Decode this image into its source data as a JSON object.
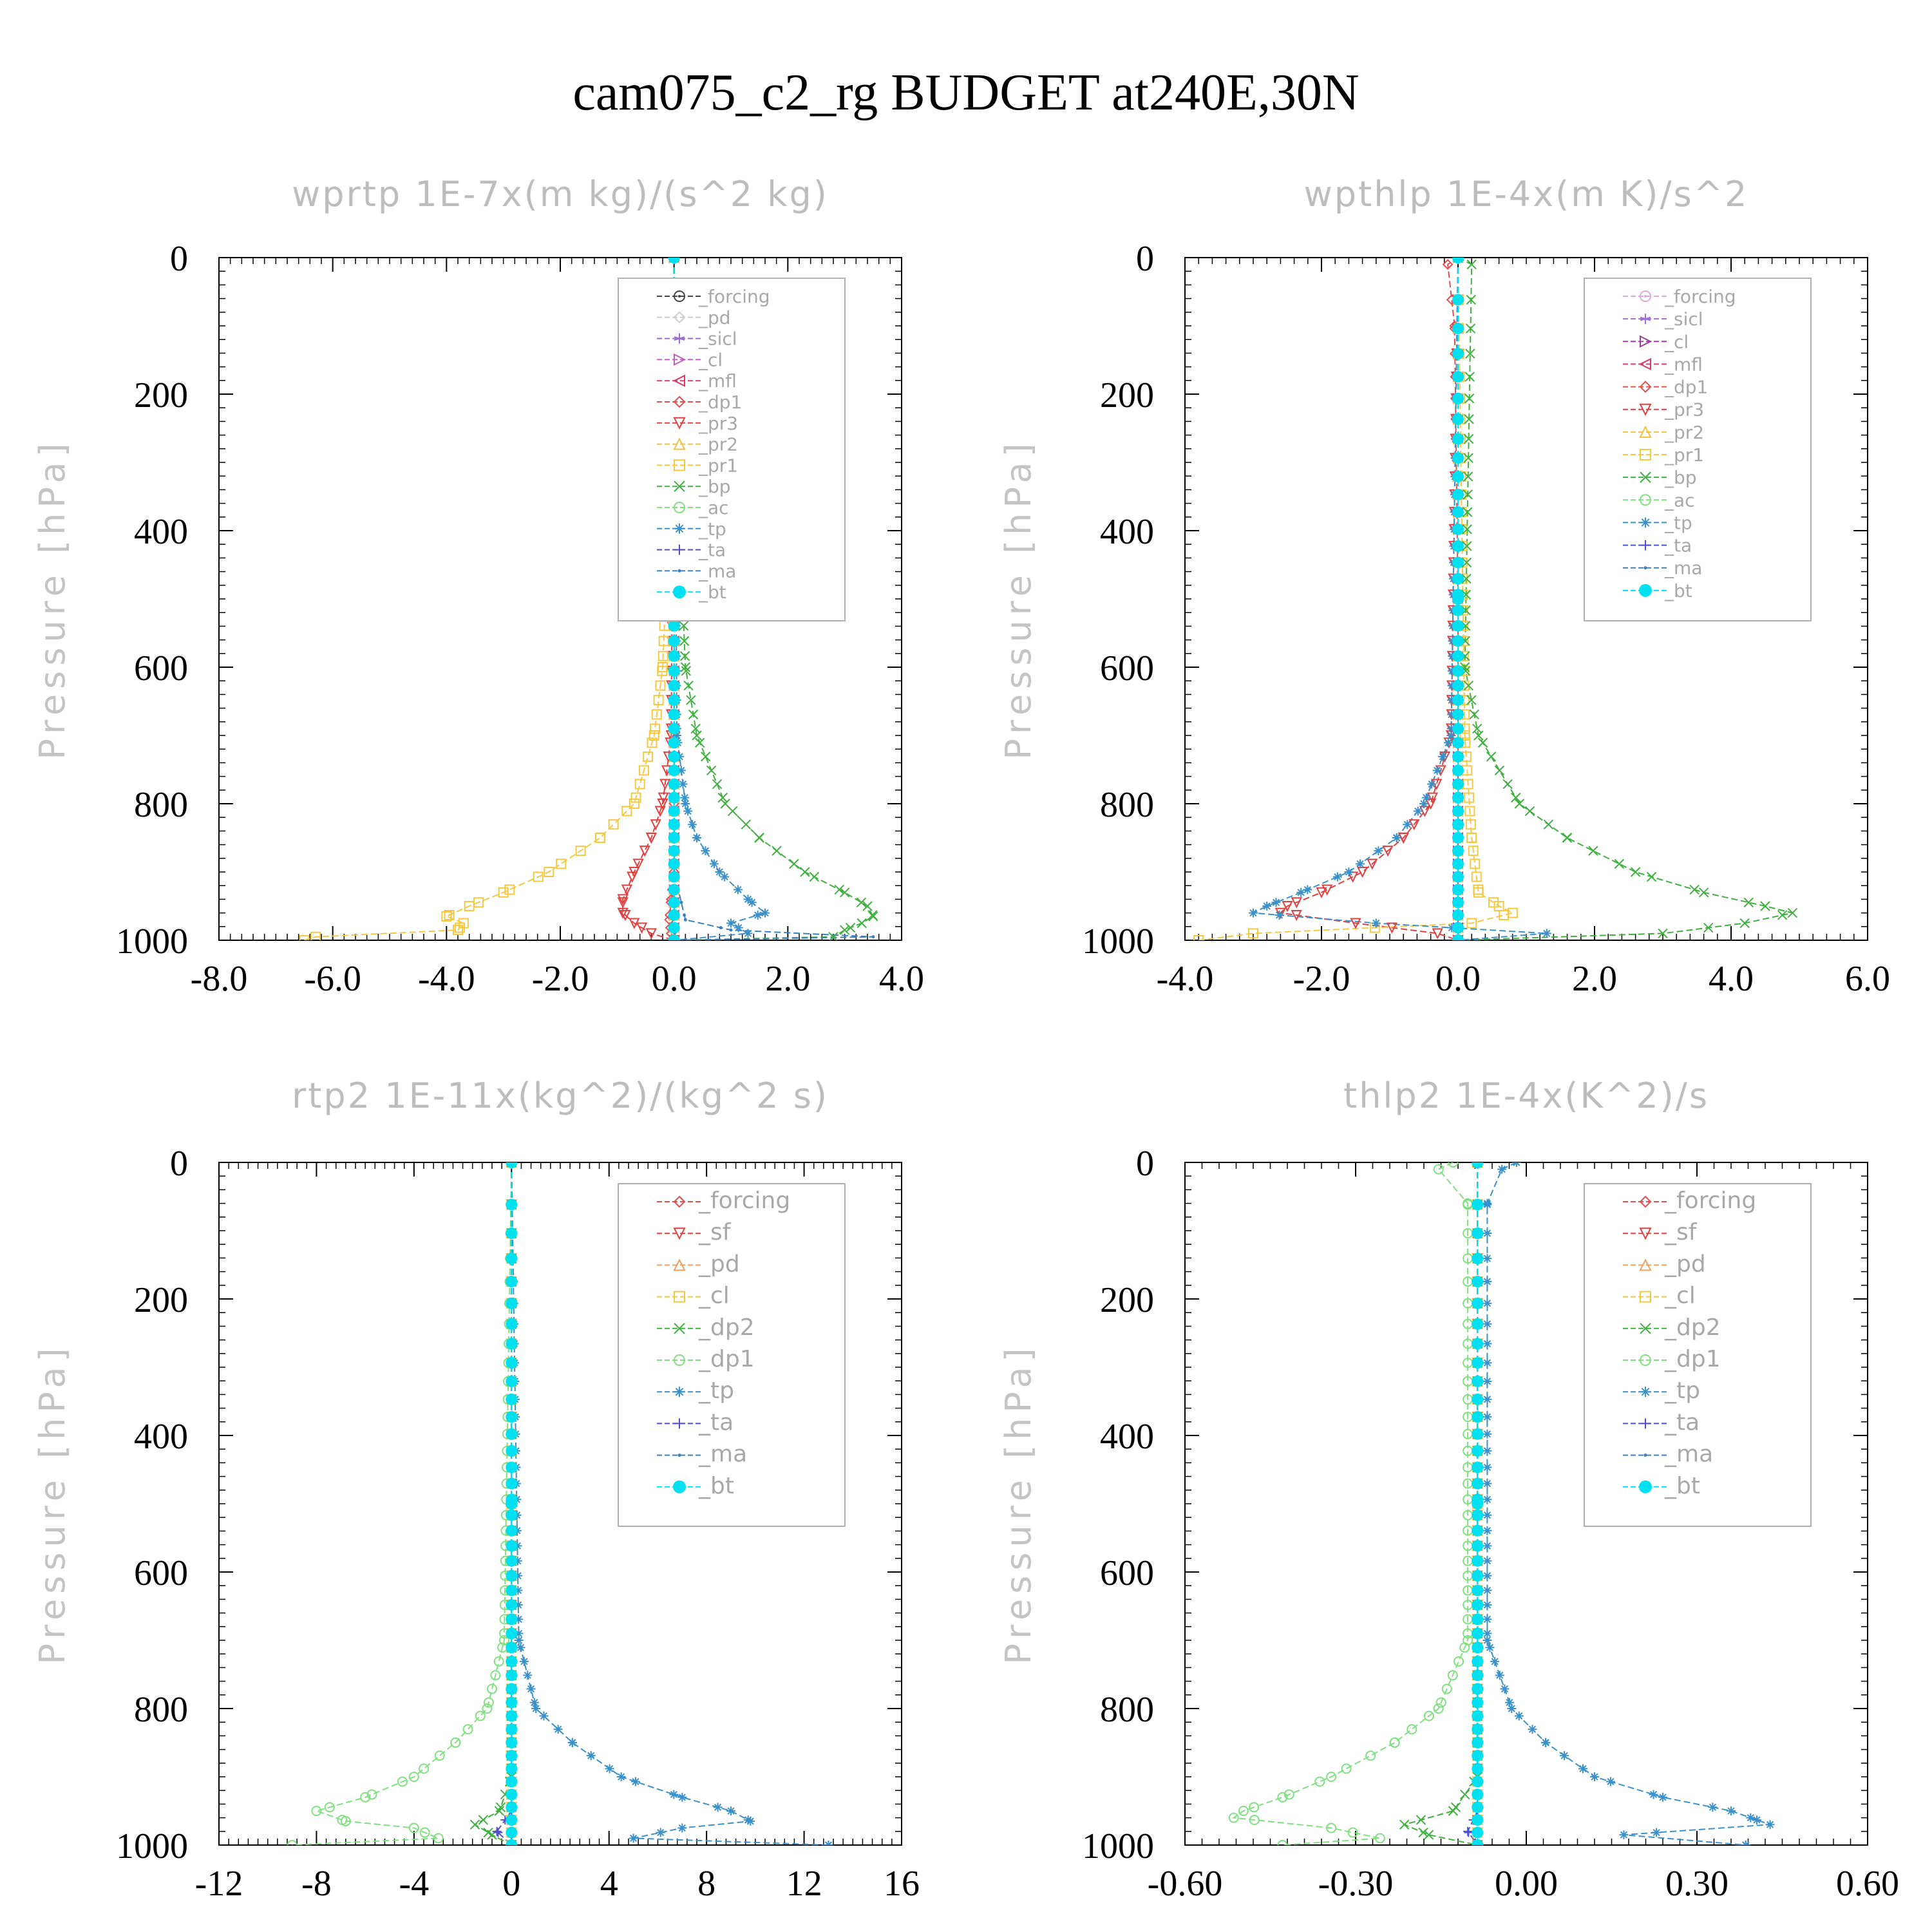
{
  "title": "cam075_c2_rg  BUDGET at240E,30N",
  "chart_data": [
    {
      "type": "line",
      "title": "wprtp   1E-7x(m kg)/(s^2 kg)",
      "ylabel": "Pressure [hPa]",
      "xlim": [
        -8,
        4
      ],
      "ylim": [
        1000,
        0
      ],
      "xticks": [
        "-8.0",
        "-6.0",
        "-4.0",
        "-2.0",
        "0.0",
        "2.0",
        "4.0"
      ],
      "yticks": [
        "0",
        "200",
        "400",
        "600",
        "800",
        "1000"
      ],
      "legend_position": "top-right",
      "grid": false,
      "series": [
        {
          "name": "_forcing",
          "color": "#444444",
          "marker": "circle-dot",
          "pressure": [
            0,
            500,
            1000
          ],
          "values": [
            0,
            0,
            0
          ]
        },
        {
          "name": "_pd",
          "color": "#cccccc",
          "marker": "diamond",
          "pressure": [
            0,
            500,
            1000
          ],
          "values": [
            0,
            0,
            0
          ]
        },
        {
          "name": "_sicl",
          "color": "#9a6fcf",
          "marker": "star",
          "pressure": [
            0,
            500,
            1000
          ],
          "values": [
            0,
            0,
            0
          ]
        },
        {
          "name": "_cl",
          "color": "#c060c0",
          "marker": "triangle-right",
          "pressure": [
            0,
            500,
            1000
          ],
          "values": [
            0,
            0,
            0
          ]
        },
        {
          "name": "_mfl",
          "color": "#e03a6a",
          "marker": "triangle-left",
          "pressure": [
            0,
            500,
            1000
          ],
          "values": [
            0,
            0,
            0
          ]
        },
        {
          "name": "_dp1",
          "color": "#e05050",
          "marker": "diamond",
          "pressure": [
            0,
            800,
            900,
            940,
            970,
            990,
            1000
          ],
          "values": [
            0,
            0,
            0,
            -0.05,
            -0.08,
            -0.05,
            0
          ]
        },
        {
          "name": "_pr3",
          "color": "#e04040",
          "marker": "triangle-down",
          "pressure": [
            0,
            700,
            800,
            850,
            900,
            940,
            960,
            975,
            990,
            1000
          ],
          "values": [
            0,
            -0.05,
            -0.2,
            -0.4,
            -0.7,
            -0.9,
            -0.9,
            -0.7,
            -0.4,
            0
          ]
        },
        {
          "name": "_pr2",
          "color": "#f0c040",
          "marker": "triangle",
          "pressure": [
            0,
            500,
            1000
          ],
          "values": [
            0,
            0,
            0
          ]
        },
        {
          "name": "_pr1",
          "color": "#f5c842",
          "marker": "square",
          "pressure": [
            0,
            400,
            600,
            700,
            800,
            850,
            900,
            930,
            950,
            965,
            975,
            985,
            995,
            1000
          ],
          "values": [
            0,
            -0.1,
            -0.2,
            -0.35,
            -0.7,
            -1.3,
            -2.2,
            -3.0,
            -3.6,
            -4.0,
            -3.7,
            -3.8,
            -6.3,
            -6.5
          ]
        },
        {
          "name": "_bp",
          "color": "#40b040",
          "marker": "x",
          "pressure": [
            0,
            400,
            600,
            700,
            800,
            850,
            900,
            930,
            950,
            965,
            975,
            985,
            995,
            1000
          ],
          "values": [
            0,
            0.1,
            0.2,
            0.4,
            0.9,
            1.5,
            2.3,
            3.0,
            3.4,
            3.5,
            3.3,
            3.0,
            2.8,
            0
          ]
        },
        {
          "name": "_ac",
          "color": "#80e080",
          "marker": "circle",
          "pressure": [
            0,
            500,
            1000
          ],
          "values": [
            0,
            0,
            0
          ]
        },
        {
          "name": "_tp",
          "color": "#3a90c8",
          "marker": "asterisk",
          "pressure": [
            0,
            700,
            800,
            850,
            900,
            940,
            960,
            975,
            990,
            1000
          ],
          "values": [
            0,
            0.05,
            0.2,
            0.4,
            0.8,
            1.3,
            1.6,
            1.0,
            1.3,
            0
          ]
        },
        {
          "name": "_ta",
          "color": "#5050d0",
          "marker": "plus",
          "pressure": [
            0,
            500,
            1000
          ],
          "values": [
            0,
            0,
            0
          ]
        },
        {
          "name": "_ma",
          "color": "#3a80c0",
          "marker": "dot",
          "pressure": [
            0,
            900,
            970,
            985,
            995,
            1000
          ],
          "values": [
            0,
            0,
            0.2,
            1.0,
            3.5,
            0
          ]
        },
        {
          "name": "_bt",
          "color": "#00e0f0",
          "marker": "filled-circle",
          "pressure": [
            0,
            500,
            1000
          ],
          "values": [
            0,
            0,
            0
          ]
        }
      ]
    },
    {
      "type": "line",
      "title": "wpthlp   1E-4x(m K)/s^2",
      "ylabel": "Pressure [hPa]",
      "xlim": [
        -4,
        6
      ],
      "ylim": [
        1000,
        0
      ],
      "xticks": [
        "-4.0",
        "-2.0",
        "0.0",
        "2.0",
        "4.0",
        "6.0"
      ],
      "yticks": [
        "0",
        "200",
        "400",
        "600",
        "800",
        "1000"
      ],
      "legend_position": "top-right",
      "grid": false,
      "series": [
        {
          "name": "_forcing",
          "color": "#dda8e0",
          "marker": "circle-dot",
          "pressure": [
            0,
            500,
            1000
          ],
          "values": [
            0,
            0,
            0
          ]
        },
        {
          "name": "_sicl",
          "color": "#a070d0",
          "marker": "star",
          "pressure": [
            0,
            500,
            1000
          ],
          "values": [
            0,
            0,
            0
          ]
        },
        {
          "name": "_cl",
          "color": "#9a40a0",
          "marker": "triangle-right",
          "pressure": [
            0,
            500,
            1000
          ],
          "values": [
            0,
            0,
            0
          ]
        },
        {
          "name": "_mfl",
          "color": "#e03a6a",
          "marker": "triangle-left",
          "pressure": [
            0,
            500,
            1000
          ],
          "values": [
            0,
            0,
            0
          ]
        },
        {
          "name": "_dp1",
          "color": "#e05050",
          "marker": "diamond",
          "pressure": [
            0,
            10,
            100,
            500,
            1000
          ],
          "values": [
            0,
            -0.15,
            -0.05,
            0,
            0
          ]
        },
        {
          "name": "_pr3",
          "color": "#e04040",
          "marker": "triangle-down",
          "pressure": [
            0,
            700,
            800,
            850,
            900,
            930,
            950,
            960,
            975,
            990,
            1000
          ],
          "values": [
            0,
            -0.1,
            -0.4,
            -0.8,
            -1.4,
            -2.0,
            -2.5,
            -2.6,
            -1.5,
            -0.3,
            0
          ]
        },
        {
          "name": "_pr2",
          "color": "#f0c040",
          "marker": "triangle",
          "pressure": [
            0,
            500,
            1000
          ],
          "values": [
            0,
            0,
            0
          ]
        },
        {
          "name": "_pr1",
          "color": "#f5c842",
          "marker": "square",
          "pressure": [
            0,
            700,
            850,
            930,
            950,
            960,
            975,
            990,
            1000
          ],
          "values": [
            0,
            0.1,
            0.2,
            0.3,
            0.6,
            0.8,
            0.2,
            -3.0,
            -3.8
          ]
        },
        {
          "name": "_bp",
          "color": "#40b040",
          "marker": "x",
          "pressure": [
            0,
            10,
            600,
            700,
            800,
            850,
            900,
            930,
            950,
            960,
            975,
            990,
            1000
          ],
          "values": [
            0,
            0.2,
            0.1,
            0.3,
            0.9,
            1.6,
            2.6,
            3.6,
            4.5,
            4.9,
            4.2,
            3.0,
            0
          ]
        },
        {
          "name": "_ac",
          "color": "#80e080",
          "marker": "circle",
          "pressure": [
            0,
            500,
            1000
          ],
          "values": [
            0,
            0,
            0
          ]
        },
        {
          "name": "_tp",
          "color": "#3a90c8",
          "marker": "asterisk",
          "pressure": [
            0,
            700,
            800,
            850,
            900,
            930,
            950,
            960,
            975,
            990,
            1000
          ],
          "values": [
            0,
            -0.1,
            -0.5,
            -0.9,
            -1.6,
            -2.3,
            -2.8,
            -3.0,
            -1.2,
            1.3,
            0
          ]
        },
        {
          "name": "_ta",
          "color": "#5050d0",
          "marker": "plus",
          "pressure": [
            0,
            500,
            1000
          ],
          "values": [
            0,
            0,
            0
          ]
        },
        {
          "name": "_ma",
          "color": "#3a80c0",
          "marker": "dot",
          "pressure": [
            0,
            500,
            1000
          ],
          "values": [
            0,
            0,
            0
          ]
        },
        {
          "name": "_bt",
          "color": "#00e0f0",
          "marker": "filled-circle",
          "pressure": [
            0,
            500,
            1000
          ],
          "values": [
            0,
            0,
            0
          ]
        }
      ]
    },
    {
      "type": "line",
      "title": "rtp2   1E-11x(kg^2)/(kg^2 s)",
      "ylabel": "Pressure [hPa]",
      "xlim": [
        -12,
        16
      ],
      "ylim": [
        1000,
        0
      ],
      "xticks": [
        "-12",
        "-8",
        "-4",
        "0",
        "4",
        "8",
        "12",
        "16"
      ],
      "yticks": [
        "0",
        "200",
        "400",
        "600",
        "800",
        "1000"
      ],
      "legend_position": "top-right",
      "grid": false,
      "series": [
        {
          "name": "_forcing",
          "color": "#e05050",
          "marker": "diamond",
          "pressure": [
            0,
            500,
            1000
          ],
          "values": [
            0,
            0,
            0
          ]
        },
        {
          "name": "_sf",
          "color": "#e04040",
          "marker": "triangle-down",
          "pressure": [
            0,
            500,
            1000
          ],
          "values": [
            0,
            0,
            0
          ]
        },
        {
          "name": "_pd",
          "color": "#f0a060",
          "marker": "triangle",
          "pressure": [
            0,
            500,
            1000
          ],
          "values": [
            0,
            0,
            0
          ]
        },
        {
          "name": "_cl",
          "color": "#f5c842",
          "marker": "square",
          "pressure": [
            0,
            500,
            1000
          ],
          "values": [
            0,
            0,
            0
          ]
        },
        {
          "name": "_dp2",
          "color": "#40b040",
          "marker": "x",
          "pressure": [
            0,
            900,
            950,
            970,
            985,
            1000
          ],
          "values": [
            0,
            0,
            -0.5,
            -1.5,
            -0.8,
            0
          ]
        },
        {
          "name": "_dp1",
          "color": "#80e080",
          "marker": "circle",
          "pressure": [
            0,
            700,
            800,
            850,
            900,
            930,
            950,
            965,
            975,
            990,
            1000
          ],
          "values": [
            0,
            -0.3,
            -1.0,
            -2.3,
            -4.0,
            -6.0,
            -8.0,
            -6.8,
            -4.0,
            -3.0,
            -9.0
          ]
        },
        {
          "name": "_tp",
          "color": "#3a90c8",
          "marker": "asterisk",
          "pressure": [
            0,
            700,
            800,
            850,
            900,
            930,
            950,
            965,
            975,
            990,
            1000
          ],
          "values": [
            0,
            0.3,
            1.0,
            2.5,
            4.5,
            7.0,
            9.0,
            9.8,
            7.0,
            5.0,
            13.0
          ]
        },
        {
          "name": "_ta",
          "color": "#5050d0",
          "marker": "plus",
          "pressure": [
            0,
            950,
            980,
            1000
          ],
          "values": [
            0,
            0,
            -0.6,
            0
          ]
        },
        {
          "name": "_ma",
          "color": "#3a80c0",
          "marker": "dot",
          "pressure": [
            0,
            500,
            1000
          ],
          "values": [
            0,
            0,
            0
          ]
        },
        {
          "name": "_bt",
          "color": "#00e0f0",
          "marker": "filled-circle",
          "pressure": [
            0,
            500,
            1000
          ],
          "values": [
            0,
            0,
            0
          ]
        }
      ]
    },
    {
      "type": "line",
      "title": "thlp2   1E-4x(K^2)/s",
      "ylabel": "Pressure [hPa]",
      "xlim": [
        -0.6,
        0.8
      ],
      "ylim": [
        1000,
        0
      ],
      "xticks": [
        "-0.60",
        "-0.30",
        "0.00",
        "0.30",
        "0.60"
      ],
      "yticks": [
        "0",
        "200",
        "400",
        "600",
        "800",
        "1000"
      ],
      "legend_position": "top-right",
      "grid": false,
      "series": [
        {
          "name": "_forcing",
          "color": "#e05050",
          "marker": "diamond",
          "pressure": [
            0,
            500,
            1000
          ],
          "values": [
            0,
            0,
            0
          ]
        },
        {
          "name": "_sf",
          "color": "#e04040",
          "marker": "triangle-down",
          "pressure": [
            0,
            500,
            1000
          ],
          "values": [
            0,
            0,
            0
          ]
        },
        {
          "name": "_pd",
          "color": "#f0a060",
          "marker": "triangle",
          "pressure": [
            0,
            500,
            1000
          ],
          "values": [
            0,
            0,
            0
          ]
        },
        {
          "name": "_cl",
          "color": "#f5c842",
          "marker": "square",
          "pressure": [
            0,
            500,
            1000
          ],
          "values": [
            0,
            0,
            0
          ]
        },
        {
          "name": "_dp2",
          "color": "#40b040",
          "marker": "x",
          "pressure": [
            0,
            900,
            950,
            970,
            985,
            1000
          ],
          "values": [
            0,
            0,
            -0.05,
            -0.15,
            -0.1,
            0
          ]
        },
        {
          "name": "_dp1",
          "color": "#80e080",
          "marker": "circle",
          "pressure": [
            0,
            10,
            60,
            700,
            800,
            850,
            900,
            930,
            950,
            960,
            975,
            990,
            1000
          ],
          "values": [
            -0.05,
            -0.08,
            -0.02,
            -0.02,
            -0.08,
            -0.17,
            -0.3,
            -0.4,
            -0.48,
            -0.5,
            -0.3,
            -0.2,
            -0.4
          ]
        },
        {
          "name": "_tp",
          "color": "#3a90c8",
          "marker": "asterisk",
          "pressure": [
            0,
            10,
            60,
            700,
            800,
            850,
            900,
            930,
            950,
            960,
            970,
            985,
            1000
          ],
          "values": [
            0.08,
            0.05,
            0.02,
            0.02,
            0.07,
            0.14,
            0.24,
            0.38,
            0.52,
            0.56,
            0.6,
            0.3,
            0.55
          ]
        },
        {
          "name": "_ta",
          "color": "#5050d0",
          "marker": "plus",
          "pressure": [
            0,
            950,
            980,
            1000
          ],
          "values": [
            0,
            0,
            -0.02,
            0
          ]
        },
        {
          "name": "_ma",
          "color": "#3a80c0",
          "marker": "dot",
          "pressure": [
            0,
            500,
            1000
          ],
          "values": [
            0,
            0,
            0
          ]
        },
        {
          "name": "_bt",
          "color": "#00e0f0",
          "marker": "filled-circle",
          "pressure": [
            0,
            500,
            1000
          ],
          "values": [
            0,
            0,
            0
          ]
        }
      ]
    }
  ]
}
